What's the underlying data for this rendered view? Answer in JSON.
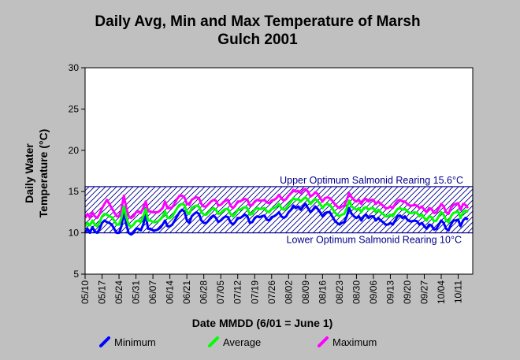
{
  "chart_data": {
    "type": "line",
    "title": "Daily Avg, Min and Max Temperature of Marsh",
    "title_line2": "Gulch 2001",
    "xlabel": "Date MMDD (6/01 = June 1)",
    "ylabel_line1": "Daily Water",
    "ylabel_line2": "Temperature (°C)",
    "ylim": [
      5,
      30
    ],
    "yticks": [
      "5",
      "10",
      "15",
      "20",
      "25",
      "30"
    ],
    "x_tick_labels": [
      "05/10",
      "05/17",
      "05/24",
      "05/31",
      "06/07",
      "06/14",
      "06/21",
      "06/28",
      "07/05",
      "07/12",
      "07/19",
      "07/26",
      "08/02",
      "08/09",
      "08/16",
      "08/23",
      "08/30",
      "09/06",
      "09/13",
      "09/20",
      "09/27",
      "10/04",
      "10/11"
    ],
    "x_start": "05/10",
    "x_end": "10/17",
    "grid": false,
    "legend_position": "bottom",
    "band": {
      "upper": 15.6,
      "lower": 10,
      "upper_label": "Upper Optimum Salmonid Rearing 15.6°C",
      "lower_label": "Lower Optimum Salmonid Rearing 10°C",
      "color": "#00008b"
    },
    "series": [
      {
        "name": "Minimum",
        "color": "#0000ff",
        "values": [
          10.0,
          10.5,
          10.0,
          10.7,
          10.2,
          10.0,
          10.5,
          11.2,
          11.5,
          11.3,
          11.2,
          11.0,
          10.5,
          10.0,
          10.0,
          10.8,
          12.5,
          11.0,
          10.0,
          9.8,
          10.0,
          10.5,
          10.5,
          10.3,
          11.0,
          12.2,
          10.5,
          10.5,
          10.3,
          10.3,
          10.4,
          10.6,
          11.0,
          11.5,
          10.8,
          10.8,
          11.0,
          11.5,
          12.0,
          12.5,
          12.8,
          12.6,
          11.5,
          11.2,
          12.0,
          12.3,
          12.5,
          12.3,
          11.5,
          11.2,
          11.2,
          11.5,
          11.9,
          12.1,
          11.8,
          11.3,
          11.5,
          11.8,
          12.0,
          11.9,
          11.3,
          11.0,
          11.3,
          11.8,
          11.8,
          12.0,
          12.2,
          12.0,
          11.2,
          11.3,
          11.8,
          12.0,
          11.9,
          12.0,
          12.1,
          11.6,
          11.5,
          11.9,
          12.0,
          12.2,
          12.5,
          12.0,
          11.8,
          12.0,
          12.5,
          12.8,
          13.3,
          13.0,
          13.2,
          12.8,
          13.2,
          13.5,
          13.0,
          12.5,
          12.8,
          13.2,
          12.9,
          12.5,
          12.0,
          12.4,
          12.5,
          12.5,
          12.0,
          11.5,
          11.2,
          11.0,
          11.2,
          11.3,
          12.0,
          13.0,
          12.3,
          12.0,
          11.8,
          12.0,
          11.5,
          12.0,
          12.2,
          11.8,
          12.0,
          12.0,
          11.5,
          11.8,
          11.5,
          11.3,
          11.0,
          11.0,
          11.2,
          11.0,
          11.5,
          12.0,
          12.1,
          11.8,
          12.0,
          11.6,
          11.4,
          11.4,
          11.5,
          11.4,
          11.0,
          11.2,
          10.8,
          10.5,
          11.0,
          10.9,
          10.4,
          10.5,
          11.0,
          11.5,
          11.2,
          10.5,
          10.3,
          11.0,
          11.5,
          11.5,
          11.6,
          10.8,
          11.5,
          11.8,
          11.6
        ]
      },
      {
        "name": "Average",
        "color": "#00ff00",
        "values": [
          10.8,
          11.2,
          10.9,
          11.5,
          11.0,
          10.8,
          11.3,
          12.0,
          12.3,
          12.2,
          12.0,
          11.9,
          11.5,
          11.0,
          11.0,
          11.8,
          13.2,
          11.9,
          11.0,
          10.7,
          11.0,
          11.4,
          11.5,
          11.3,
          12.0,
          12.9,
          11.5,
          11.5,
          11.3,
          11.3,
          11.4,
          11.6,
          12.0,
          12.6,
          11.8,
          11.8,
          12.0,
          12.5,
          13.0,
          13.4,
          13.5,
          13.4,
          12.5,
          12.3,
          13.0,
          13.2,
          13.3,
          13.2,
          12.5,
          12.2,
          12.2,
          12.5,
          12.8,
          13.0,
          12.8,
          12.3,
          12.4,
          12.7,
          12.9,
          12.9,
          12.3,
          12.0,
          12.3,
          12.8,
          12.8,
          13.0,
          13.1,
          13.0,
          12.2,
          12.3,
          12.8,
          13.0,
          12.9,
          12.9,
          13.0,
          12.6,
          12.5,
          12.9,
          13.0,
          13.2,
          13.5,
          13.0,
          12.8,
          13.0,
          13.4,
          13.8,
          14.2,
          14.0,
          14.1,
          13.8,
          14.1,
          14.3,
          14.0,
          13.5,
          13.8,
          14.1,
          13.9,
          13.5,
          13.0,
          13.4,
          13.5,
          13.4,
          13.0,
          12.5,
          12.2,
          12.0,
          12.2,
          12.3,
          13.0,
          13.9,
          13.2,
          13.0,
          12.8,
          13.0,
          12.5,
          13.0,
          13.1,
          12.8,
          13.0,
          13.0,
          12.5,
          12.8,
          12.5,
          12.3,
          12.0,
          12.0,
          12.2,
          12.0,
          12.5,
          12.9,
          13.0,
          12.8,
          12.9,
          12.6,
          12.4,
          12.4,
          12.5,
          12.4,
          12.0,
          12.2,
          11.8,
          11.5,
          12.0,
          11.9,
          11.4,
          11.5,
          12.0,
          12.5,
          12.2,
          11.5,
          11.3,
          12.0,
          12.4,
          12.5,
          12.6,
          11.8,
          12.5,
          12.7,
          12.5
        ]
      },
      {
        "name": "Maximum",
        "color": "#ff00ff",
        "values": [
          11.8,
          12.3,
          11.8,
          12.5,
          12.0,
          11.8,
          12.3,
          13.0,
          13.5,
          14.0,
          13.5,
          13.0,
          12.5,
          12.0,
          12.0,
          12.8,
          14.5,
          13.0,
          12.0,
          11.8,
          12.0,
          12.5,
          12.6,
          12.4,
          13.0,
          13.8,
          12.6,
          12.6,
          12.5,
          12.5,
          12.5,
          12.7,
          13.0,
          13.8,
          13.0,
          13.0,
          13.1,
          13.6,
          14.1,
          14.5,
          14.5,
          14.3,
          13.5,
          13.4,
          14.0,
          14.2,
          14.3,
          14.2,
          13.5,
          13.2,
          13.2,
          13.5,
          13.8,
          14.0,
          13.9,
          13.3,
          13.4,
          13.7,
          13.9,
          14.0,
          13.3,
          13.0,
          13.3,
          13.8,
          13.8,
          14.0,
          14.1,
          14.0,
          13.3,
          13.4,
          13.8,
          14.0,
          13.9,
          13.9,
          14.0,
          13.7,
          13.6,
          13.9,
          14.0,
          14.2,
          14.6,
          14.2,
          13.9,
          14.1,
          14.5,
          14.8,
          15.2,
          15.0,
          15.1,
          14.8,
          15.2,
          15.3,
          15.0,
          14.4,
          14.6,
          14.9,
          14.7,
          14.2,
          13.8,
          14.2,
          14.3,
          14.2,
          13.9,
          13.5,
          13.2,
          13.0,
          13.2,
          13.3,
          14.0,
          14.8,
          14.3,
          14.0,
          13.8,
          14.0,
          13.5,
          14.0,
          14.1,
          13.8,
          14.0,
          14.0,
          13.5,
          13.8,
          13.5,
          13.3,
          13.0,
          13.0,
          13.2,
          13.0,
          13.5,
          13.9,
          14.0,
          13.8,
          13.8,
          13.5,
          13.3,
          13.3,
          13.4,
          13.3,
          13.0,
          13.2,
          12.8,
          12.5,
          13.0,
          12.9,
          12.4,
          12.5,
          13.0,
          13.5,
          13.2,
          12.5,
          12.3,
          13.0,
          13.4,
          13.5,
          13.6,
          12.8,
          13.5,
          13.4,
          13.0
        ]
      }
    ]
  }
}
